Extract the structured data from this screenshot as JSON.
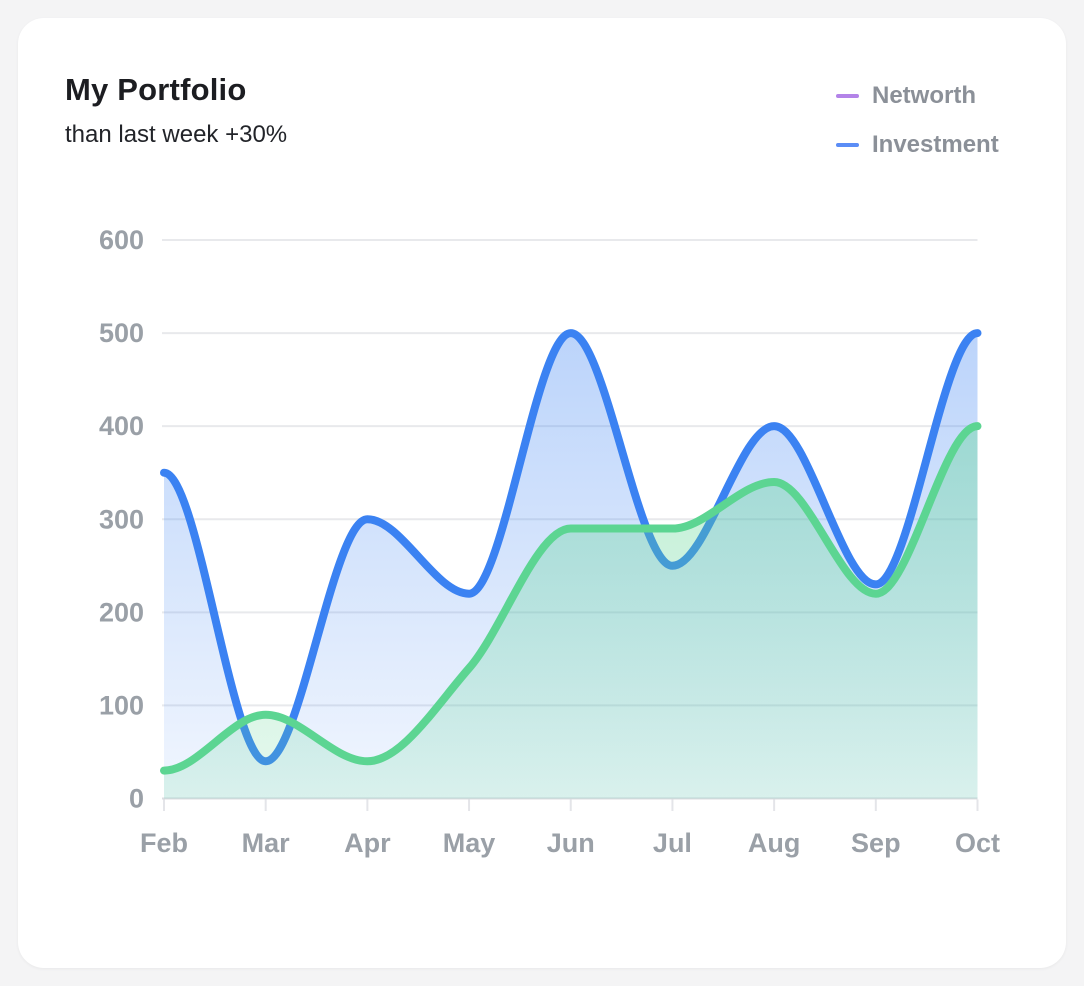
{
  "header": {
    "title": "My Portfolio",
    "subtitle": "than last week +30%"
  },
  "legend": {
    "items": [
      {
        "label": "Networth",
        "color": "#b383e8"
      },
      {
        "label": "Investment",
        "color": "#5b8df6"
      }
    ]
  },
  "chart_data": {
    "type": "area",
    "title": "My Portfolio",
    "categories": [
      "Feb",
      "Mar",
      "Apr",
      "May",
      "Jun",
      "Jul",
      "Aug",
      "Sep",
      "Oct"
    ],
    "series": [
      {
        "name": "Investment",
        "line_color": "#3b82f2",
        "fill_top": "rgba(59,130,242,0.40)",
        "fill_bottom": "rgba(59,130,242,0.07)",
        "values": [
          350,
          40,
          300,
          220,
          500,
          250,
          400,
          230,
          500
        ]
      },
      {
        "name": "Networth",
        "line_color": "#5cd592",
        "fill_top": "rgba(92,213,146,0.50)",
        "fill_bottom": "rgba(92,213,146,0.16)",
        "values": [
          30,
          90,
          40,
          140,
          290,
          290,
          340,
          220,
          400
        ]
      }
    ],
    "xlabel": "",
    "ylabel": "",
    "ylim": [
      0,
      600
    ],
    "y_ticks": [
      0,
      100,
      200,
      300,
      400,
      500,
      600
    ],
    "grid": "horizontal",
    "legend_position": "top-right",
    "curve": "monotone"
  },
  "colors": {
    "page_bg": "#f4f4f5",
    "card_bg": "#ffffff",
    "gridline": "#e8e9ec",
    "gridline_zero": "#dcdde1",
    "tick": "#e4e5e9",
    "axis_label": "#9aa0a7",
    "legend_text": "#8b9098",
    "title_text": "#1c1d21",
    "subtitle_text": "#222429"
  }
}
